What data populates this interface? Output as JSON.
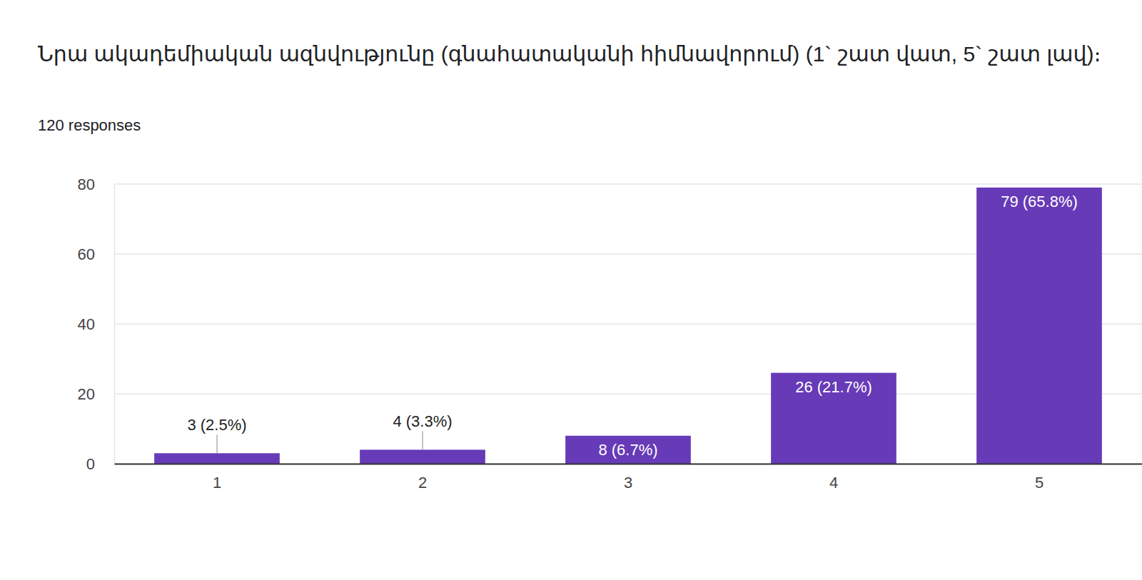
{
  "chart_data": {
    "type": "bar",
    "title": "Նրա ակադեմիական ազնվությունը (գնահատականի հիմնավորում)  (1` շատ վատ, 5` շատ լավ)։",
    "subtitle": "120 responses",
    "categories": [
      "1",
      "2",
      "3",
      "4",
      "5"
    ],
    "values": [
      3,
      4,
      8,
      26,
      79
    ],
    "value_labels": [
      "3 (2.5%)",
      "4 (3.3%)",
      "8 (6.7%)",
      "26 (21.7%)",
      "79 (65.8%)"
    ],
    "color": "#673ab7",
    "ylim": [
      0,
      80
    ],
    "yticks": [
      0,
      20,
      40,
      60,
      80
    ],
    "grid": true,
    "data_labels": true
  }
}
